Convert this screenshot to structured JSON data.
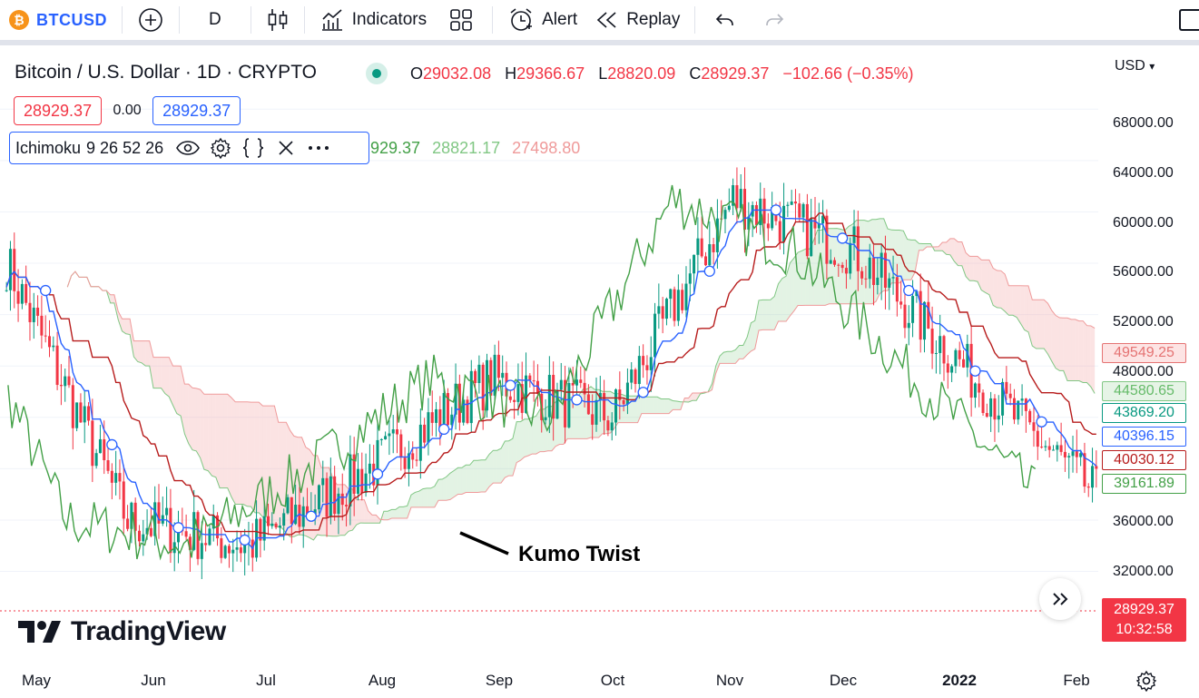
{
  "toolbar": {
    "symbol_glyph": "₿",
    "symbol": "BTCUSD",
    "interval": "D",
    "indicators_label": "Indicators",
    "alert_label": "Alert",
    "replay_label": "Replay"
  },
  "legend": {
    "title": "Bitcoin / U.S. Dollar · 1D · CRYPTO",
    "open_label": "O",
    "open": "29032.08",
    "high_label": "H",
    "high": "29366.67",
    "low_label": "L",
    "low": "28820.09",
    "close_label": "C",
    "close": "28929.37",
    "change": "−102.66 (−0.35%)",
    "sell_price": "28929.37",
    "spread": "0.00",
    "buy_price": "28929.37"
  },
  "indicator": {
    "name": "Ichimoku",
    "params": "9 26 52 26",
    "value_a": "929.37",
    "value_b": "28821.17",
    "value_c": "27498.80"
  },
  "price_axis": {
    "currency": "USD",
    "labels": [
      "68000.00",
      "64000.00",
      "60000.00",
      "56000.00",
      "52000.00",
      "48000.00",
      "36000.00",
      "32000.00"
    ],
    "tags": [
      {
        "value": "49549.25",
        "bg": "#fde4e4",
        "color": "#e57373",
        "border": "#e57373"
      },
      {
        "value": "44580.65",
        "bg": "#e6f4e6",
        "color": "#66bb6a",
        "border": "#81c784"
      },
      {
        "value": "43869.20",
        "bg": "#ffffff",
        "color": "#089981",
        "border": "#089981"
      },
      {
        "value": "40396.15",
        "bg": "#ffffff",
        "color": "#2962ff",
        "border": "#2962ff"
      },
      {
        "value": "40030.12",
        "bg": "#ffffff",
        "color": "#b71c1c",
        "border": "#b71c1c"
      },
      {
        "value": "39161.89",
        "bg": "#ffffff",
        "color": "#43a047",
        "border": "#43a047"
      }
    ],
    "last_price": "28929.37",
    "countdown": "10:32:58"
  },
  "time_axis": [
    "May",
    "Jun",
    "Jul",
    "Aug",
    "Sep",
    "Oct",
    "Nov",
    "Dec",
    "2022",
    "Feb"
  ],
  "annotation": "Kumo Twist",
  "brand": "TradingView",
  "colors": {
    "up": "#089981",
    "down": "#f23645",
    "tenkan": "#2962ff",
    "kijun": "#b71c1c",
    "chikou": "#43a047",
    "span_a": "#81c784",
    "span_b": "#ef9a9a"
  },
  "chart_data": {
    "type": "line",
    "x": [
      "May",
      "Jun",
      "Jul",
      "Aug",
      "Sep",
      "Oct",
      "Nov",
      "Dec",
      "2022",
      "Feb"
    ],
    "close_approx": [
      56000,
      36000,
      34000,
      40000,
      47000,
      44000,
      61000,
      57000,
      47000,
      38000
    ],
    "ylim": [
      29000,
      70000
    ]
  }
}
